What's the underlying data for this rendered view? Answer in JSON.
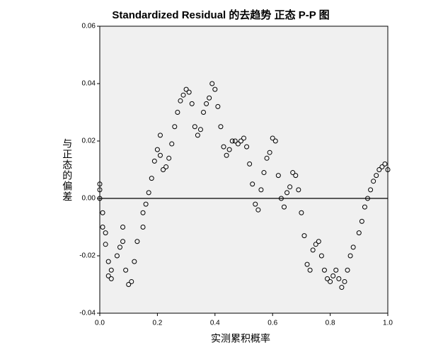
{
  "chart_data": {
    "type": "scatter",
    "title": "Standardized Residual 的去趋势 正态 P-P 图",
    "x_label": "实测累积概率",
    "y_label": "与正态的偏差",
    "x": [
      0,
      0,
      0,
      0.01,
      0.01,
      0.02,
      0.02,
      0.03,
      0.03,
      0.04,
      0.04,
      0.06,
      0.07,
      0.08,
      0.08,
      0.09,
      0.1,
      0.11,
      0.12,
      0.13,
      0.15,
      0.15,
      0.16,
      0.17,
      0.18,
      0.19,
      0.2,
      0.21,
      0.21,
      0.22,
      0.23,
      0.24,
      0.25,
      0.26,
      0.27,
      0.28,
      0.29,
      0.3,
      0.31,
      0.32,
      0.33,
      0.34,
      0.35,
      0.36,
      0.37,
      0.38,
      0.39,
      0.4,
      0.41,
      0.42,
      0.43,
      0.44,
      0.45,
      0.46,
      0.47,
      0.48,
      0.49,
      0.5,
      0.51,
      0.52,
      0.53,
      0.54,
      0.55,
      0.56,
      0.57,
      0.58,
      0.59,
      0.6,
      0.61,
      0.62,
      0.63,
      0.64,
      0.65,
      0.66,
      0.67,
      0.68,
      0.69,
      0.7,
      0.71,
      0.72,
      0.73,
      0.74,
      0.75,
      0.76,
      0.77,
      0.78,
      0.79,
      0.8,
      0.81,
      0.82,
      0.83,
      0.84,
      0.85,
      0.86,
      0.87,
      0.88,
      0.9,
      0.91,
      0.92,
      0.93,
      0.94,
      0.95,
      0.96,
      0.97,
      0.98,
      0.99,
      1.0
    ],
    "values": [
      0.005,
      0.003,
      0.0,
      -0.005,
      -0.01,
      -0.012,
      -0.016,
      -0.022,
      -0.027,
      -0.028,
      -0.025,
      -0.02,
      -0.017,
      -0.01,
      -0.015,
      -0.025,
      -0.03,
      -0.029,
      -0.022,
      -0.015,
      -0.005,
      -0.01,
      -0.002,
      0.002,
      0.007,
      0.013,
      0.017,
      0.022,
      0.015,
      0.01,
      0.011,
      0.014,
      0.019,
      0.025,
      0.03,
      0.034,
      0.036,
      0.038,
      0.037,
      0.033,
      0.025,
      0.022,
      0.024,
      0.03,
      0.033,
      0.035,
      0.04,
      0.038,
      0.032,
      0.025,
      0.018,
      0.015,
      0.017,
      0.02,
      0.02,
      0.019,
      0.02,
      0.021,
      0.018,
      0.012,
      0.005,
      -0.002,
      -0.004,
      0.003,
      0.009,
      0.014,
      0.016,
      0.021,
      0.02,
      0.008,
      0.0,
      -0.003,
      0.002,
      0.004,
      0.009,
      0.008,
      0.003,
      -0.005,
      -0.013,
      -0.023,
      -0.025,
      -0.018,
      -0.016,
      -0.015,
      -0.02,
      -0.025,
      -0.028,
      -0.029,
      -0.027,
      -0.025,
      -0.028,
      -0.031,
      -0.029,
      -0.025,
      -0.02,
      -0.017,
      -0.012,
      -0.008,
      -0.003,
      0.0,
      0.003,
      0.006,
      0.008,
      0.01,
      0.011,
      0.012,
      0.01
    ],
    "color": "#000000",
    "xlim": [
      0,
      1
    ],
    "ylim": [
      -0.04,
      0.06
    ],
    "xticks": [
      {
        "value": 0,
        "label": "0.0"
      },
      0.2,
      0.4,
      0.6,
      0.8,
      {
        "value": 1,
        "label": "1.0"
      }
    ],
    "yticks": [
      -0.04,
      -0.02,
      {
        "value": 0,
        "label": "0.00"
      },
      0.02,
      0.04,
      0.06
    ],
    "reference_line": 0,
    "background": "#f0f0f0"
  }
}
